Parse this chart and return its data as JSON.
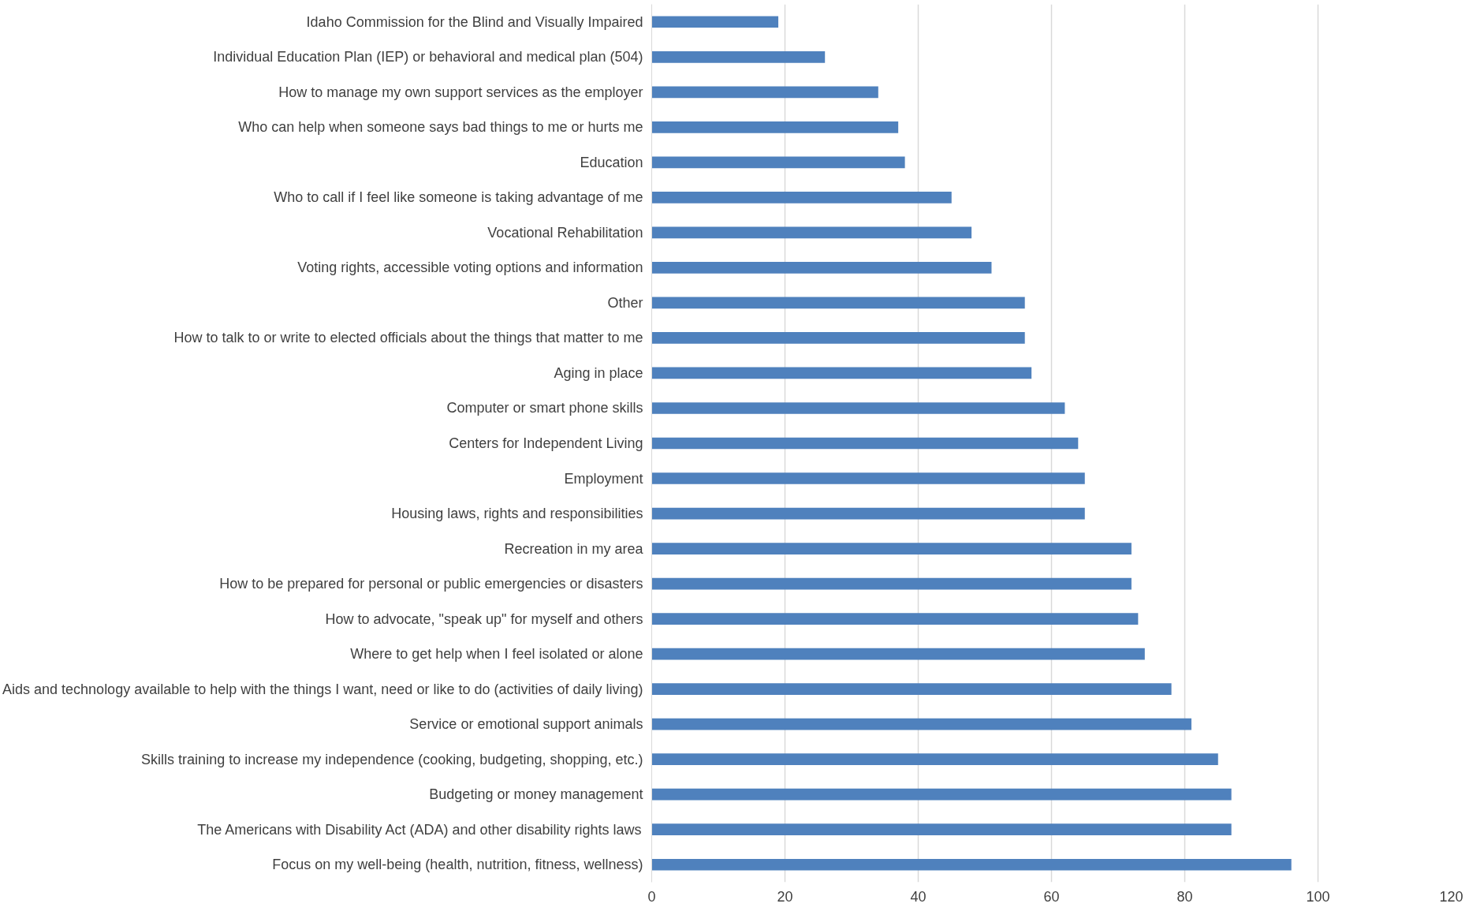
{
  "chart_data": {
    "type": "bar",
    "orientation": "horizontal",
    "color": "#4f81bd",
    "categories": [
      "Idaho Commission for the Blind and Visually Impaired",
      "Individual Education Plan (IEP) or behavioral and medical plan (504)",
      "How to manage my own support services as the employer",
      "Who can help when someone says bad things to me or hurts me",
      "Education",
      "Who to call if I feel like someone is taking advantage of me",
      "Vocational Rehabilitation",
      "Voting rights, accessible voting options and information",
      "Other",
      "How to talk to or write to elected officials about the things that matter to me",
      "Aging in place",
      "Computer or smart phone skills",
      "Centers for Independent Living",
      "Employment",
      "Housing laws, rights and responsibilities",
      "Recreation in my area",
      "How to be prepared for personal or public emergencies or disasters",
      "How to advocate, \"speak up\" for myself and others",
      "Where to get help when I feel isolated or alone",
      "Aids and technology available to help with the things I want, need or like to do (activities of daily living)",
      "Service or emotional support animals",
      "Skills training to increase my independence (cooking, budgeting, shopping, etc.)",
      "Budgeting or money management",
      "The Americans with Disability Act (ADA) and other disability rights laws",
      "Focus on my well-being (health, nutrition, fitness, wellness)"
    ],
    "values": [
      19,
      26,
      34,
      37,
      38,
      45,
      48,
      51,
      56,
      56,
      57,
      62,
      64,
      65,
      65,
      72,
      72,
      73,
      74,
      78,
      81,
      85,
      87,
      87,
      96
    ],
    "xlim": [
      0,
      120
    ],
    "xticks": [
      0,
      20,
      40,
      60,
      80,
      100,
      120
    ],
    "grid": "x"
  }
}
